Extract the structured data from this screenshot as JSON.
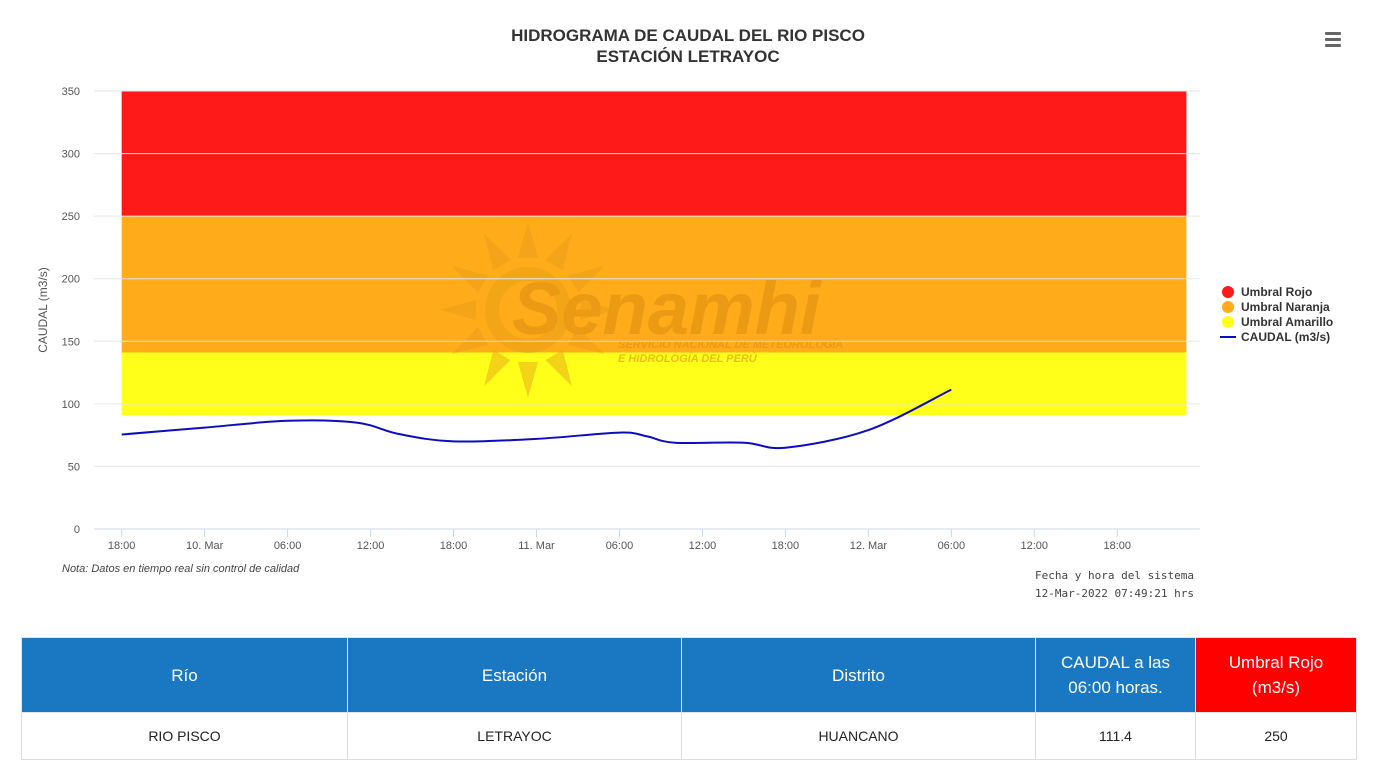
{
  "chart_data": {
    "type": "line",
    "title": "HIDROGRAMA DE CAUDAL DEL RIO PISCO",
    "subtitle": "ESTACIÓN LETRAYOC",
    "ylabel": "CAUDAL (m3/s)",
    "xlabel": "",
    "ylim": [
      0,
      350
    ],
    "yticks": [
      0,
      50,
      100,
      150,
      200,
      250,
      300,
      350
    ],
    "xlim": [
      "2022-03-09 16:00",
      "2022-03-12 23:59"
    ],
    "xticks": [
      {
        "t": "2022-03-09 18:00",
        "label": "18:00"
      },
      {
        "t": "2022-03-10 00:00",
        "label": "10. Mar"
      },
      {
        "t": "2022-03-10 06:00",
        "label": "06:00"
      },
      {
        "t": "2022-03-10 12:00",
        "label": "12:00"
      },
      {
        "t": "2022-03-10 18:00",
        "label": "18:00"
      },
      {
        "t": "2022-03-11 00:00",
        "label": "11. Mar"
      },
      {
        "t": "2022-03-11 06:00",
        "label": "06:00"
      },
      {
        "t": "2022-03-11 12:00",
        "label": "12:00"
      },
      {
        "t": "2022-03-11 18:00",
        "label": "18:00"
      },
      {
        "t": "2022-03-12 00:00",
        "label": "12. Mar"
      },
      {
        "t": "2022-03-12 06:00",
        "label": "06:00"
      },
      {
        "t": "2022-03-12 12:00",
        "label": "12:00"
      },
      {
        "t": "2022-03-12 18:00",
        "label": "18:00"
      }
    ],
    "bands": [
      {
        "name": "Umbral Rojo",
        "from": 250,
        "to": 350,
        "color": "#ff1a1a"
      },
      {
        "name": "Umbral Naranja",
        "from": 141,
        "to": 250,
        "color": "#ffab1a"
      },
      {
        "name": "Umbral Amarillo",
        "from": 91,
        "to": 141,
        "color": "#ffff1a"
      }
    ],
    "band_start": "2022-03-09 18:00",
    "band_end": "2022-03-12 23:00",
    "series": [
      {
        "name": "CAUDAL (m3/s)",
        "color": "#0d0dbd",
        "points": [
          {
            "t": "2022-03-09 18:00",
            "y": 75.5
          },
          {
            "t": "2022-03-10 00:00",
            "y": 81
          },
          {
            "t": "2022-03-10 06:00",
            "y": 86.5
          },
          {
            "t": "2022-03-10 11:00",
            "y": 85
          },
          {
            "t": "2022-03-10 14:00",
            "y": 76
          },
          {
            "t": "2022-03-10 18:00",
            "y": 70
          },
          {
            "t": "2022-03-11 00:00",
            "y": 72
          },
          {
            "t": "2022-03-11 06:00",
            "y": 77
          },
          {
            "t": "2022-03-11 08:00",
            "y": 74
          },
          {
            "t": "2022-03-11 10:00",
            "y": 69
          },
          {
            "t": "2022-03-11 15:00",
            "y": 69
          },
          {
            "t": "2022-03-11 18:00",
            "y": 65
          },
          {
            "t": "2022-03-12 00:00",
            "y": 79
          },
          {
            "t": "2022-03-12 06:00",
            "y": 111.4
          }
        ]
      }
    ],
    "legend": {
      "position": "right",
      "items": [
        {
          "label": "Umbral Rojo",
          "color": "#ff1a1a",
          "kind": "dot"
        },
        {
          "label": "Umbral Naranja",
          "color": "#ffab1a",
          "kind": "dot"
        },
        {
          "label": "Umbral Amarillo",
          "color": "#ffff1a",
          "kind": "dot"
        },
        {
          "label": "CAUDAL (m3/s)",
          "color": "#0d0dbd",
          "kind": "line"
        }
      ]
    },
    "grid": true,
    "note": "Nota: Datos en tiempo real sin control de calidad",
    "system_time_label": "Fecha y hora del sistema",
    "system_time_value": "12-Mar-2022 07:49:21 hrs",
    "watermark": {
      "brand": "Senamhi",
      "line1": "SERVICIO NACIONAL DE METEOROLOGÍA",
      "line2": "E HIDROLOGÍA DEL PERÚ"
    }
  },
  "table": {
    "headers": {
      "rio": "Río",
      "estacion": "Estación",
      "distrito": "Distrito",
      "caudal_line1": "CAUDAL a las",
      "caudal_line2": "06:00 horas.",
      "umbral_line1": "Umbral Rojo",
      "umbral_line2": "(m3/s)"
    },
    "row": {
      "rio": "RIO PISCO",
      "estacion": "LETRAYOC",
      "distrito": "HUANCANO",
      "caudal": "111.4",
      "umbral": "250"
    }
  },
  "menu_icon": "hamburger-menu-icon"
}
